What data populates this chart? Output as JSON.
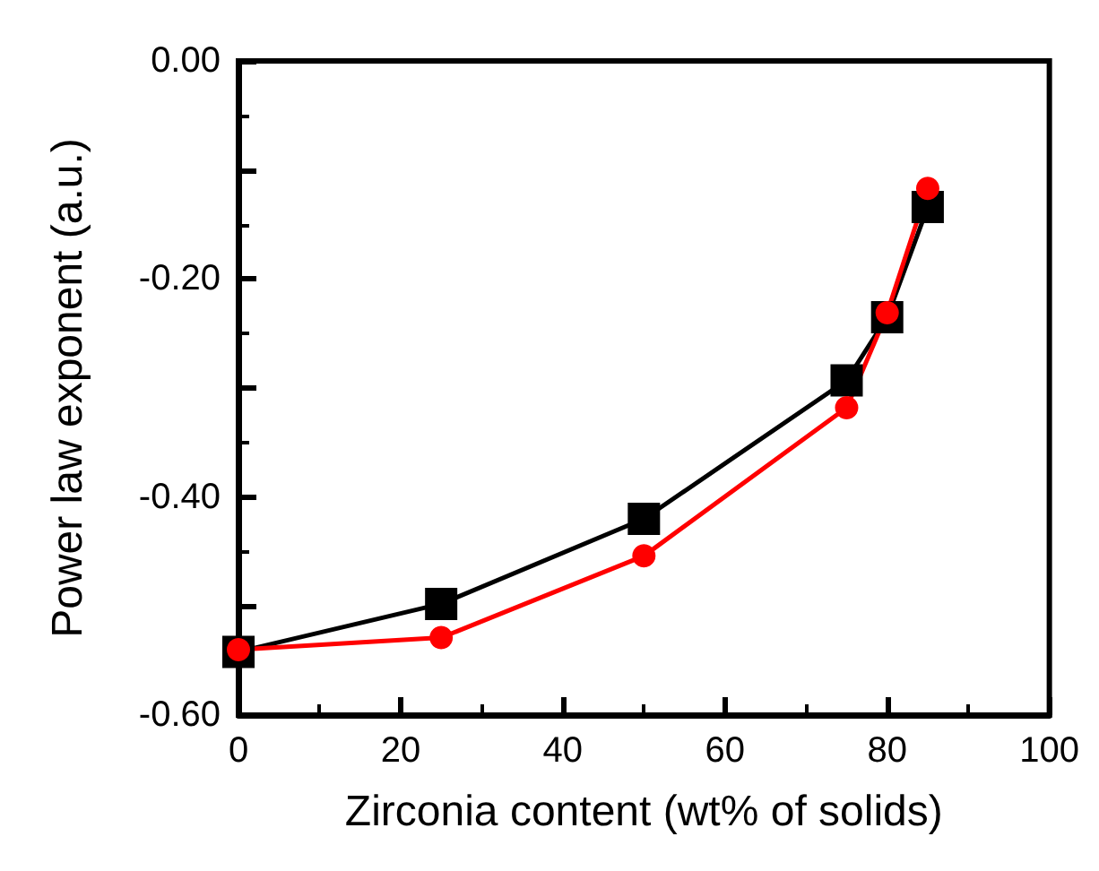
{
  "chart_data": {
    "type": "line",
    "xlabel": "Zirconia content (wt% of solids)",
    "ylabel": "Power law exponent (a.u.)",
    "xlim": [
      0,
      100
    ],
    "xticks": [
      0,
      20,
      40,
      60,
      80,
      100
    ],
    "ylim": [
      -0.6,
      0
    ],
    "yticks": [
      {
        "value": -0.6,
        "label": "-0.60"
      },
      {
        "value": -0.4,
        "label": "-0.40"
      },
      {
        "value": -0.2,
        "label": "-0.20"
      },
      {
        "value": 0,
        "label": "0.00"
      }
    ],
    "grid": false,
    "series": [
      {
        "color": "#000000",
        "marker": "square",
        "x": [
          0,
          25,
          50,
          75,
          80,
          85
        ],
        "values": [
          -0.542,
          -0.498,
          -0.42,
          -0.293,
          -0.235,
          -0.134
        ]
      },
      {
        "color": "#ff0000",
        "marker": "circle",
        "x": [
          0,
          25,
          50,
          75,
          80,
          85
        ],
        "values": [
          -0.54,
          -0.529,
          -0.454,
          -0.318,
          -0.231,
          -0.117
        ]
      }
    ]
  }
}
